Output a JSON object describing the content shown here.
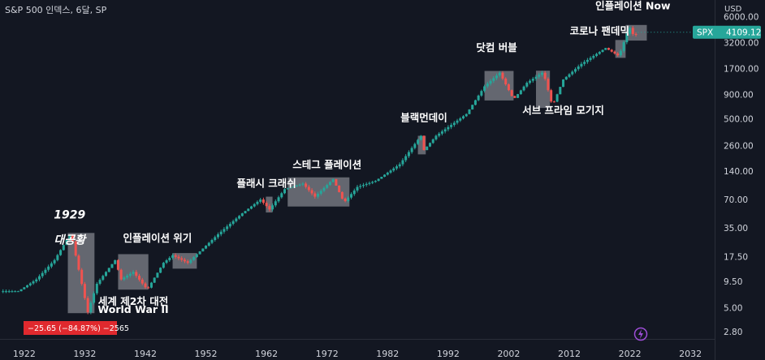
{
  "header": {
    "title": "S&P 500 인덱스, 6달, SP",
    "currency": "USD"
  },
  "price_tag": {
    "symbol": "SPX",
    "value": "4109.12",
    "color": "#26a69a"
  },
  "drawdown_label": {
    "text": "−25.65 (−84.87%) −2565",
    "color": "#e0292e"
  },
  "colors": {
    "up": "#26a69a",
    "down": "#ef5350",
    "box": "#7b7e86",
    "background": "#131722"
  },
  "icons": {
    "bottom": "lightning-icon"
  },
  "chart_data": {
    "type": "candlestick",
    "scale": "log",
    "x_range": [
      1918,
      2036
    ],
    "y_range": [
      2.35,
      9000
    ],
    "x_ticks": [
      "1922",
      "1932",
      "1942",
      "1952",
      "1962",
      "1972",
      "1982",
      "1992",
      "2002",
      "2012",
      "2022",
      "2032"
    ],
    "y_ticks": [
      "6000.00",
      "3200.00",
      "1700.00",
      "900.00",
      "500.00",
      "260.00",
      "140.00",
      "70.00",
      "35.00",
      "17.50",
      "9.50",
      "5.00",
      "2.80"
    ],
    "last_price": 4109.12,
    "approx_path": [
      [
        1918,
        7.5
      ],
      [
        1921,
        7.5
      ],
      [
        1924,
        10
      ],
      [
        1927,
        16
      ],
      [
        1929.7,
        31
      ],
      [
        1932.5,
        4.5
      ],
      [
        1934,
        9
      ],
      [
        1937,
        16
      ],
      [
        1938,
        10
      ],
      [
        1940,
        12
      ],
      [
        1942.3,
        7.8
      ],
      [
        1945,
        15
      ],
      [
        1946.5,
        18
      ],
      [
        1949,
        15
      ],
      [
        1954,
        30
      ],
      [
        1958,
        50
      ],
      [
        1961,
        70
      ],
      [
        1962.5,
        55
      ],
      [
        1965,
        90
      ],
      [
        1968,
        103
      ],
      [
        1970,
        75
      ],
      [
        1973,
        115
      ],
      [
        1974.8,
        65
      ],
      [
        1977,
        95
      ],
      [
        1980,
        110
      ],
      [
        1984,
        165
      ],
      [
        1987.5,
        330
      ],
      [
        1987.8,
        225
      ],
      [
        1990,
        330
      ],
      [
        1995,
        560
      ],
      [
        1998,
        1100
      ],
      [
        2000.5,
        1530
      ],
      [
        2002.8,
        800
      ],
      [
        2005,
        1200
      ],
      [
        2007.7,
        1560
      ],
      [
        2009.2,
        680
      ],
      [
        2011,
        1300
      ],
      [
        2014,
        1900
      ],
      [
        2018,
        2800
      ],
      [
        2020.2,
        2300
      ],
      [
        2021.9,
        4700
      ],
      [
        2022.8,
        3600
      ],
      [
        2023.2,
        4109
      ]
    ],
    "annotations": [
      {
        "text": "1929",
        "x": 1929.5,
        "y": 44
      },
      {
        "text": "대공황",
        "x": 1929.5,
        "y": 24
      },
      {
        "text": "인플레이션 위기",
        "x": 1944,
        "y": 25
      },
      {
        "text": "세계 제2차 대전",
        "x": 1940,
        "y": 5.4
      },
      {
        "text": "World War II",
        "x": 1940,
        "y": 4.4
      },
      {
        "text": "플래시 크래쉬",
        "x": 1962,
        "y": 95
      },
      {
        "text": "스테그 플레이션",
        "x": 1972,
        "y": 150
      },
      {
        "text": "블랙먼데이",
        "x": 1988,
        "y": 470
      },
      {
        "text": "닷컴 버블",
        "x": 2000,
        "y": 2600
      },
      {
        "text": "서브 프라임 모기지",
        "x": 2011,
        "y": 560
      },
      {
        "text": "코로나 팬데믹",
        "x": 2017,
        "y": 3900
      },
      {
        "text": "인플레이션 Now",
        "x": 2022.5,
        "y": 7200
      }
    ],
    "event_boxes": [
      {
        "x": [
          1929.2,
          1933.6
        ],
        "y": [
          4.4,
          31
        ]
      },
      {
        "x": [
          1937.5,
          1942.5
        ],
        "y": [
          7.8,
          18.5
        ]
      },
      {
        "x": [
          1946.5,
          1950.5
        ],
        "y": [
          13,
          19
        ]
      },
      {
        "x": [
          1961.9,
          1963.0
        ],
        "y": [
          51,
          75
        ]
      },
      {
        "x": [
          1965.5,
          1975.7
        ],
        "y": [
          59,
          120
        ]
      },
      {
        "x": [
          1987.0,
          1988.3
        ],
        "y": [
          210,
          330
        ]
      },
      {
        "x": [
          1998.0,
          2002.8
        ],
        "y": [
          780,
          1600
        ]
      },
      {
        "x": [
          2006.5,
          2008.8
        ],
        "y": [
          650,
          1610
        ]
      },
      {
        "x": [
          2019.6,
          2021.3
        ],
        "y": [
          2200,
          3400
        ]
      },
      {
        "x": [
          2021.3,
          2024.8
        ],
        "y": [
          3350,
          4900
        ]
      }
    ]
  }
}
